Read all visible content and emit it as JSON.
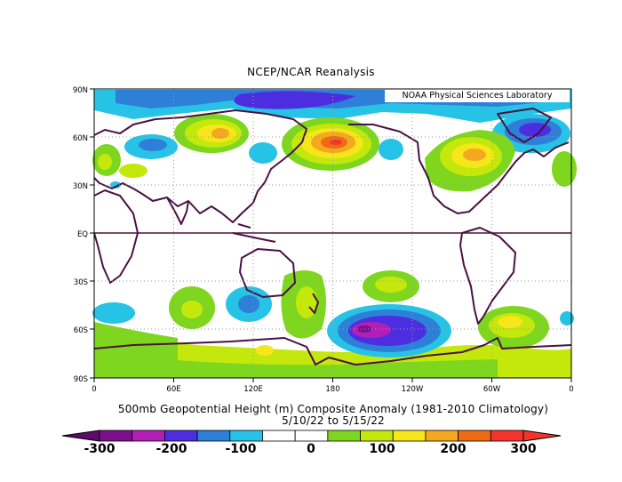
{
  "title": "NCEP/NCAR Reanalysis",
  "credit": "NOAA Physical Sciences Laboratory",
  "caption_line1": "500mb Geopotential Height (m) Composite Anomaly (1981-2010 Climatology)",
  "caption_line2": "5/10/22  to 5/15/22",
  "lat_labels": [
    "90N",
    "60N",
    "30N",
    "EQ",
    "30S",
    "60S",
    "90S"
  ],
  "lon_labels": [
    "0",
    "60E",
    "120E",
    "180",
    "120W",
    "60W",
    "0"
  ],
  "colorbar": {
    "labels": [
      "-300",
      "-200",
      "-100",
      "0",
      "100",
      "200",
      "300"
    ],
    "colors": [
      "#7c0f8c",
      "#b31fb6",
      "#4c2ee0",
      "#2d7fd8",
      "#27c3e6",
      "#ffffff",
      "#ffffff",
      "#7fd61e",
      "#c4e80c",
      "#f7e61a",
      "#f4a81f",
      "#f06a13",
      "#f4342c"
    ],
    "left_cap_color": "#5c0b68",
    "right_cap_color": "#f4342c"
  }
}
